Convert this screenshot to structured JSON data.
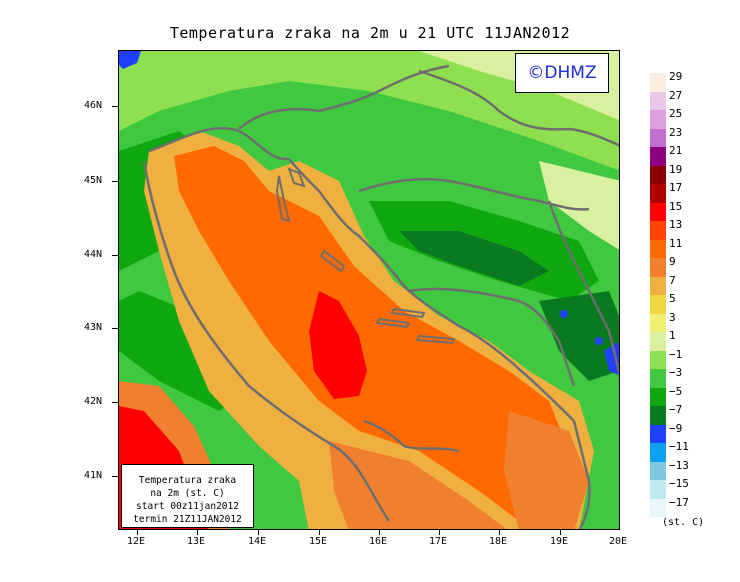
{
  "title": "Temperatura zraka na 2m u 21 UTC 11JAN2012",
  "copyright": "©DHMZ",
  "infobox": {
    "line1": "Temperatura zraka",
    "line2": "na 2m (st. C)",
    "line3": "start 00z11jan2012",
    "line4": "termin 21Z11JAN2012"
  },
  "lat_labels": [
    "46N",
    "45N",
    "44N",
    "43N",
    "42N",
    "41N"
  ],
  "lon_labels": [
    "12E",
    "13E",
    "14E",
    "15E",
    "16E",
    "17E",
    "18E",
    "19E",
    "20E"
  ],
  "legend": {
    "labels": [
      "29",
      "27",
      "25",
      "23",
      "21",
      "19",
      "17",
      "15",
      "13",
      "11",
      "9",
      "7",
      "5",
      "3",
      "1",
      "−1",
      "−3",
      "−5",
      "−7",
      "−9",
      "−11",
      "−13",
      "−15",
      "−17"
    ],
    "colors": [
      "#fbeee0",
      "#e8c8e8",
      "#dda0dd",
      "#c070d0",
      "#8b0080",
      "#8b0000",
      "#b00000",
      "#ff0000",
      "#ff4500",
      "#ff6a00",
      "#f08030",
      "#f0b040",
      "#f0d840",
      "#f0f070",
      "#d8f0a0",
      "#8ee050",
      "#40c840",
      "#10a810",
      "#0a7a20",
      "#2040ff",
      "#10a0f0",
      "#80c8e0",
      "#c0e8f0",
      "#e8f8f8"
    ],
    "unit": "(st. C)"
  },
  "colors": {
    "sea_warm": "#f08030",
    "sea_core": "#ff6a00",
    "sea_hot": "#ff0000",
    "coast_warm": "#f0b040",
    "land_light": "#8ee050",
    "land_mid": "#40c840",
    "land_dark": "#10a810",
    "land_darkest": "#0a7a20",
    "cold_blue": "#2040ff",
    "border": "#6e6e6e"
  }
}
